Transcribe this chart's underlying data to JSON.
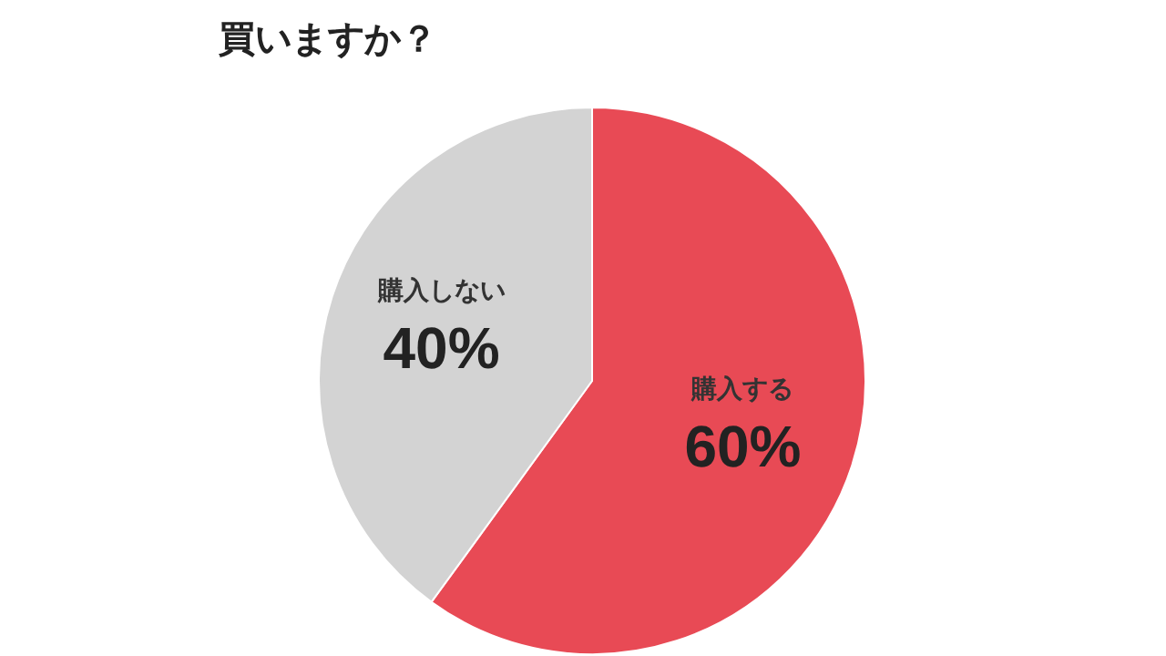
{
  "chart_data": {
    "type": "pie",
    "title": "買いますか？",
    "categories": [
      "購入する",
      "購入しない"
    ],
    "values": [
      60,
      40
    ],
    "colors": [
      "#e84a55",
      "#d3d3d3"
    ],
    "value_labels": [
      "60%",
      "40%"
    ],
    "legend": false
  }
}
